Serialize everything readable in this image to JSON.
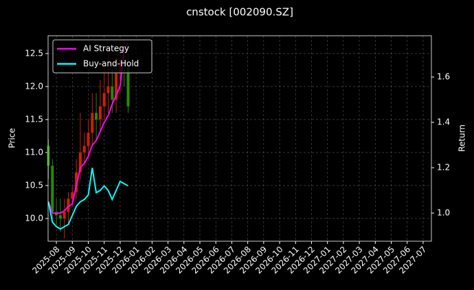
{
  "chart_data": {
    "type": "candlestick",
    "title": "cnstock [002090.SZ]",
    "ylabel": "Price",
    "y2label": "Return",
    "x": [
      -0.5,
      -0.25,
      0,
      0.25,
      0.5,
      0.75,
      1,
      1.25,
      1.5,
      1.75,
      2,
      2.25,
      2.5,
      2.75,
      3,
      3.25,
      3.5,
      3.75,
      4,
      4.25,
      4.5
    ],
    "open": [
      11.1,
      10.8,
      10.1,
      10.05,
      10.0,
      10.1,
      10.3,
      10.4,
      10.7,
      11.0,
      11.1,
      11.3,
      11.6,
      11.5,
      11.7,
      11.9,
      12.0,
      11.8,
      12.2,
      12.4,
      12.3
    ],
    "high": [
      11.2,
      10.9,
      10.3,
      10.3,
      10.3,
      10.4,
      10.5,
      10.9,
      11.6,
      11.3,
      11.5,
      11.9,
      11.9,
      12.1,
      12.3,
      12.6,
      12.3,
      12.5,
      12.7,
      12.7,
      12.5
    ],
    "low": [
      10.6,
      10.0,
      9.9,
      9.8,
      9.7,
      9.9,
      10.2,
      10.3,
      10.6,
      10.8,
      10.9,
      11.1,
      11.2,
      11.3,
      11.5,
      11.6,
      11.6,
      11.6,
      11.9,
      12.0,
      11.6
    ],
    "close": [
      10.8,
      10.1,
      10.05,
      10.0,
      10.1,
      10.3,
      10.4,
      10.7,
      11.0,
      11.1,
      11.3,
      11.6,
      11.5,
      11.7,
      11.9,
      12.0,
      11.8,
      12.2,
      12.4,
      12.3,
      11.7
    ],
    "up_color": "#cc2200",
    "down_color": "#2a8a00",
    "series": [
      {
        "name": "AI Strategy",
        "color": "#ff00ff",
        "axis": "y2",
        "values": [
          1.05,
          1.0,
          1.0,
          1.0,
          1.01,
          1.03,
          1.04,
          1.12,
          1.2,
          1.22,
          1.25,
          1.3,
          1.32,
          1.36,
          1.4,
          1.43,
          1.48,
          1.52,
          1.56,
          1.72,
          1.75
        ]
      },
      {
        "name": "Buy-and-Hold",
        "color": "#00ffff",
        "axis": "y2",
        "values": [
          1.05,
          0.96,
          0.94,
          0.93,
          0.94,
          0.95,
          0.99,
          1.03,
          1.05,
          1.06,
          1.08,
          1.2,
          1.09,
          1.1,
          1.12,
          1.1,
          1.06,
          1.1,
          1.14,
          1.13,
          1.12
        ]
      }
    ],
    "xlim": [
      -0.52,
      23.52
    ],
    "xticks": [
      {
        "value": 0,
        "label": "2025-08"
      },
      {
        "value": 1,
        "label": "2025-09"
      },
      {
        "value": 2,
        "label": "2025-10"
      },
      {
        "value": 3,
        "label": "2025-11"
      },
      {
        "value": 4,
        "label": "2025-12"
      },
      {
        "value": 5,
        "label": "2026-01"
      },
      {
        "value": 6,
        "label": "2026-02"
      },
      {
        "value": 7,
        "label": "2026-03"
      },
      {
        "value": 8,
        "label": "2026-04"
      },
      {
        "value": 9,
        "label": "2026-05"
      },
      {
        "value": 10,
        "label": "2026-06"
      },
      {
        "value": 11,
        "label": "2026-07"
      },
      {
        "value": 12,
        "label": "2026-08"
      },
      {
        "value": 13,
        "label": "2026-09"
      },
      {
        "value": 14,
        "label": "2026-10"
      },
      {
        "value": 15,
        "label": "2026-11"
      },
      {
        "value": 16,
        "label": "2026-12"
      },
      {
        "value": 17,
        "label": "2027-01"
      },
      {
        "value": 18,
        "label": "2027-02"
      },
      {
        "value": 19,
        "label": "2027-03"
      },
      {
        "value": 20,
        "label": "2027-04"
      },
      {
        "value": 21,
        "label": "2027-05"
      },
      {
        "value": 22,
        "label": "2027-06"
      },
      {
        "value": 23,
        "label": "2027-07"
      }
    ],
    "ylim": [
      9.656,
      12.77
    ],
    "yticks": [
      {
        "value": 10,
        "label": "10.0"
      },
      10.5,
      {
        "value": 11,
        "label": "11.0"
      },
      11.5,
      {
        "value": 12,
        "label": "12.0"
      },
      12.5
    ],
    "y2lim": [
      0.876,
      1.782
    ],
    "y2ticks": [
      {
        "value": 1,
        "label": "1.0"
      },
      1.2,
      1.4,
      1.6
    ],
    "grid": true,
    "legend": "upper-left"
  }
}
